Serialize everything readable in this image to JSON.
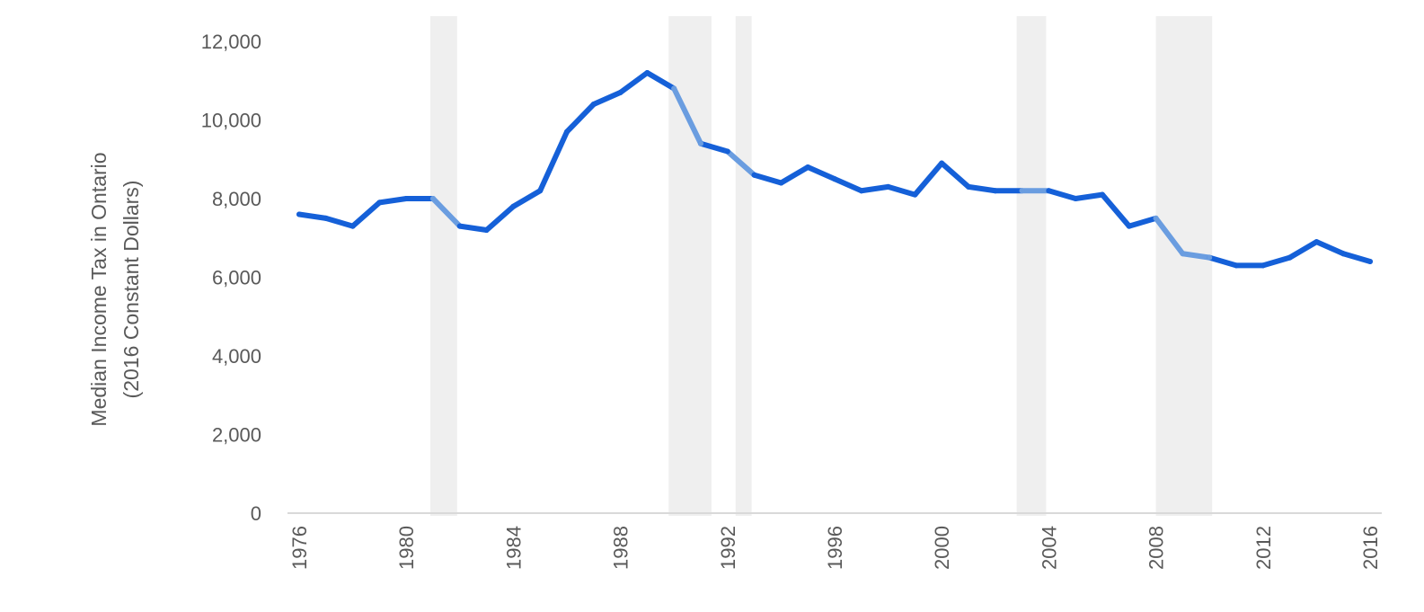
{
  "chart_data": {
    "type": "line",
    "title": "",
    "ylabel_lines": [
      "Median Income Tax in Ontario",
      "(2016 Constant Dollars)"
    ],
    "xlabel": "",
    "ylim": [
      0,
      12000
    ],
    "xlim": [
      1976,
      2016
    ],
    "y_ticks": [
      0,
      2000,
      4000,
      6000,
      8000,
      10000,
      12000
    ],
    "y_tick_labels": [
      "0",
      "2,000",
      "4,000",
      "6,000",
      "8,000",
      "10,000",
      "12,000"
    ],
    "x_ticks": [
      1976,
      1980,
      1984,
      1988,
      1992,
      1996,
      2000,
      2004,
      2008,
      2012,
      2016
    ],
    "x_tick_labels": [
      "1976",
      "1980",
      "1984",
      "1988",
      "1992",
      "1996",
      "2000",
      "2004",
      "2008",
      "2012",
      "2016"
    ],
    "grid": false,
    "recession_bands": [
      {
        "start": 1980.9,
        "end": 1981.9
      },
      {
        "start": 1989.8,
        "end": 1991.4
      },
      {
        "start": 1992.3,
        "end": 1992.9
      },
      {
        "start": 2002.8,
        "end": 2003.9
      },
      {
        "start": 2008.0,
        "end": 2010.1
      }
    ],
    "colors": {
      "line": "#1560D8",
      "line_in_band": "#6A9DE0",
      "band": "#EFEFEF",
      "axis": "#D9D9D9",
      "text": "#595959"
    },
    "series": [
      {
        "x": [
          1976,
          1977,
          1978,
          1979,
          1980,
          1981,
          1982,
          1983,
          1984,
          1985,
          1986,
          1987,
          1988,
          1989,
          1990,
          1991,
          1992,
          1993,
          1994,
          1995,
          1996,
          1997,
          1998,
          1999,
          2000,
          2001,
          2002,
          2003,
          2004,
          2005,
          2006,
          2007,
          2008,
          2009,
          2010,
          2011,
          2012,
          2013,
          2014,
          2015,
          2016
        ],
        "values": [
          7600,
          7500,
          7300,
          7900,
          8000,
          8000,
          7300,
          7200,
          7800,
          8200,
          9700,
          10400,
          10700,
          11200,
          10800,
          9400,
          9200,
          8600,
          8400,
          8800,
          8500,
          8200,
          8300,
          8100,
          8900,
          8300,
          8200,
          8200,
          8200,
          8000,
          8100,
          7300,
          7500,
          6600,
          6500,
          6300,
          6300,
          6500,
          6900,
          6600,
          6400
        ]
      }
    ]
  }
}
